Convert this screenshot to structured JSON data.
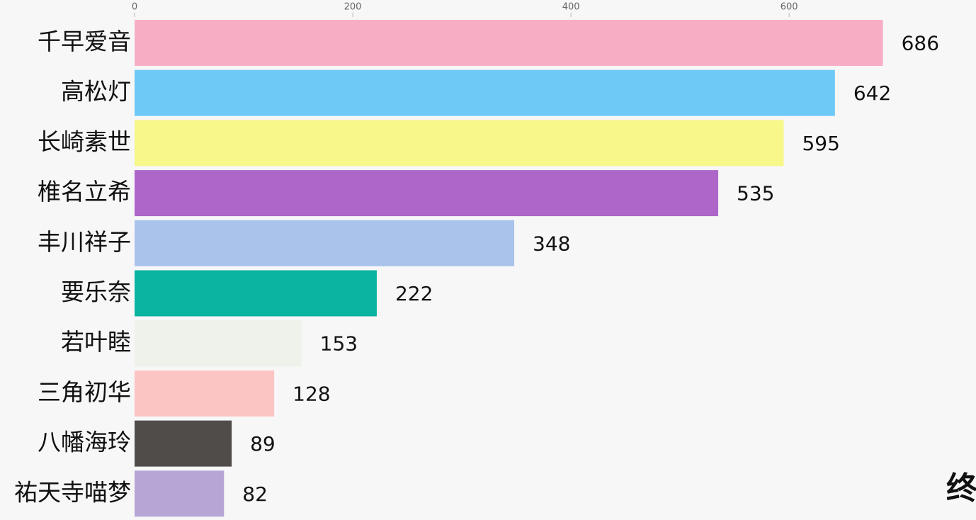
{
  "chart_data": {
    "type": "bar",
    "orientation": "horizontal",
    "categories": [
      "千早爱音",
      "高松灯",
      "长崎素世",
      "椎名立希",
      "丰川祥子",
      "要乐奈",
      "若叶睦",
      "三角初华",
      "八幡海玲",
      "祐天寺喵梦"
    ],
    "values": [
      686,
      642,
      595,
      535,
      348,
      222,
      153,
      128,
      89,
      82
    ],
    "colors": [
      "#f7aec4",
      "#6ec9f7",
      "#f7f78a",
      "#ae66c9",
      "#a9c3eb",
      "#0bb3a1",
      "#eef2ea",
      "#fbc5c3",
      "#4f4c4a",
      "#b6a6d6"
    ],
    "xlim": [
      0,
      770
    ],
    "xticks": [
      0,
      200,
      400,
      600
    ],
    "annotation": "终"
  }
}
